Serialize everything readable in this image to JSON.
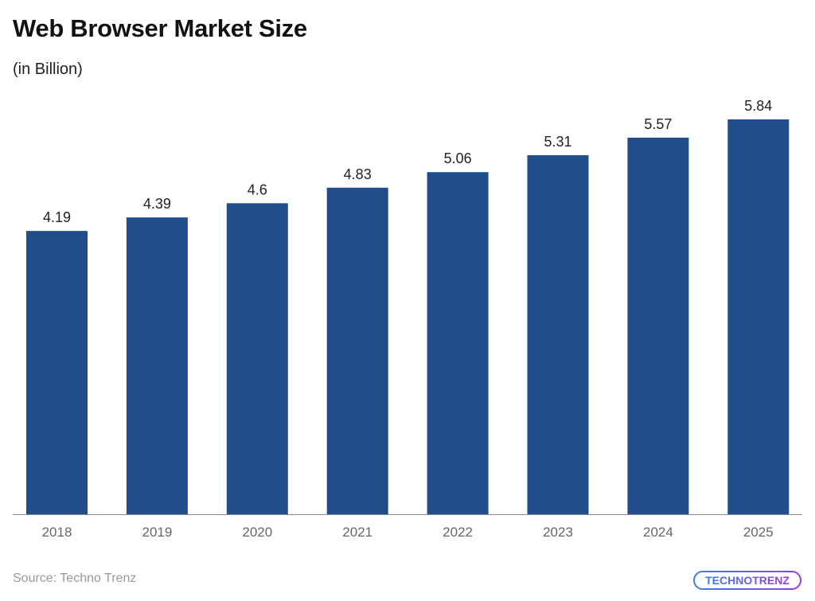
{
  "chart_data": {
    "type": "bar",
    "title": "Web Browser Market Size",
    "subtitle": "(in Billion)",
    "categories": [
      "2018",
      "2019",
      "2020",
      "2021",
      "2022",
      "2023",
      "2024",
      "2025"
    ],
    "values": [
      4.19,
      4.39,
      4.6,
      4.83,
      5.06,
      5.31,
      5.57,
      5.84
    ],
    "value_labels": [
      "4.19",
      "4.39",
      "4.6",
      "4.83",
      "5.06",
      "5.31",
      "5.57",
      "5.84"
    ],
    "ylim": [
      0,
      5.84
    ],
    "grid": false,
    "bar_color": "#214e8a"
  },
  "source": "Source: Techno Trenz",
  "logo_text": "TECHNOTRENZ"
}
